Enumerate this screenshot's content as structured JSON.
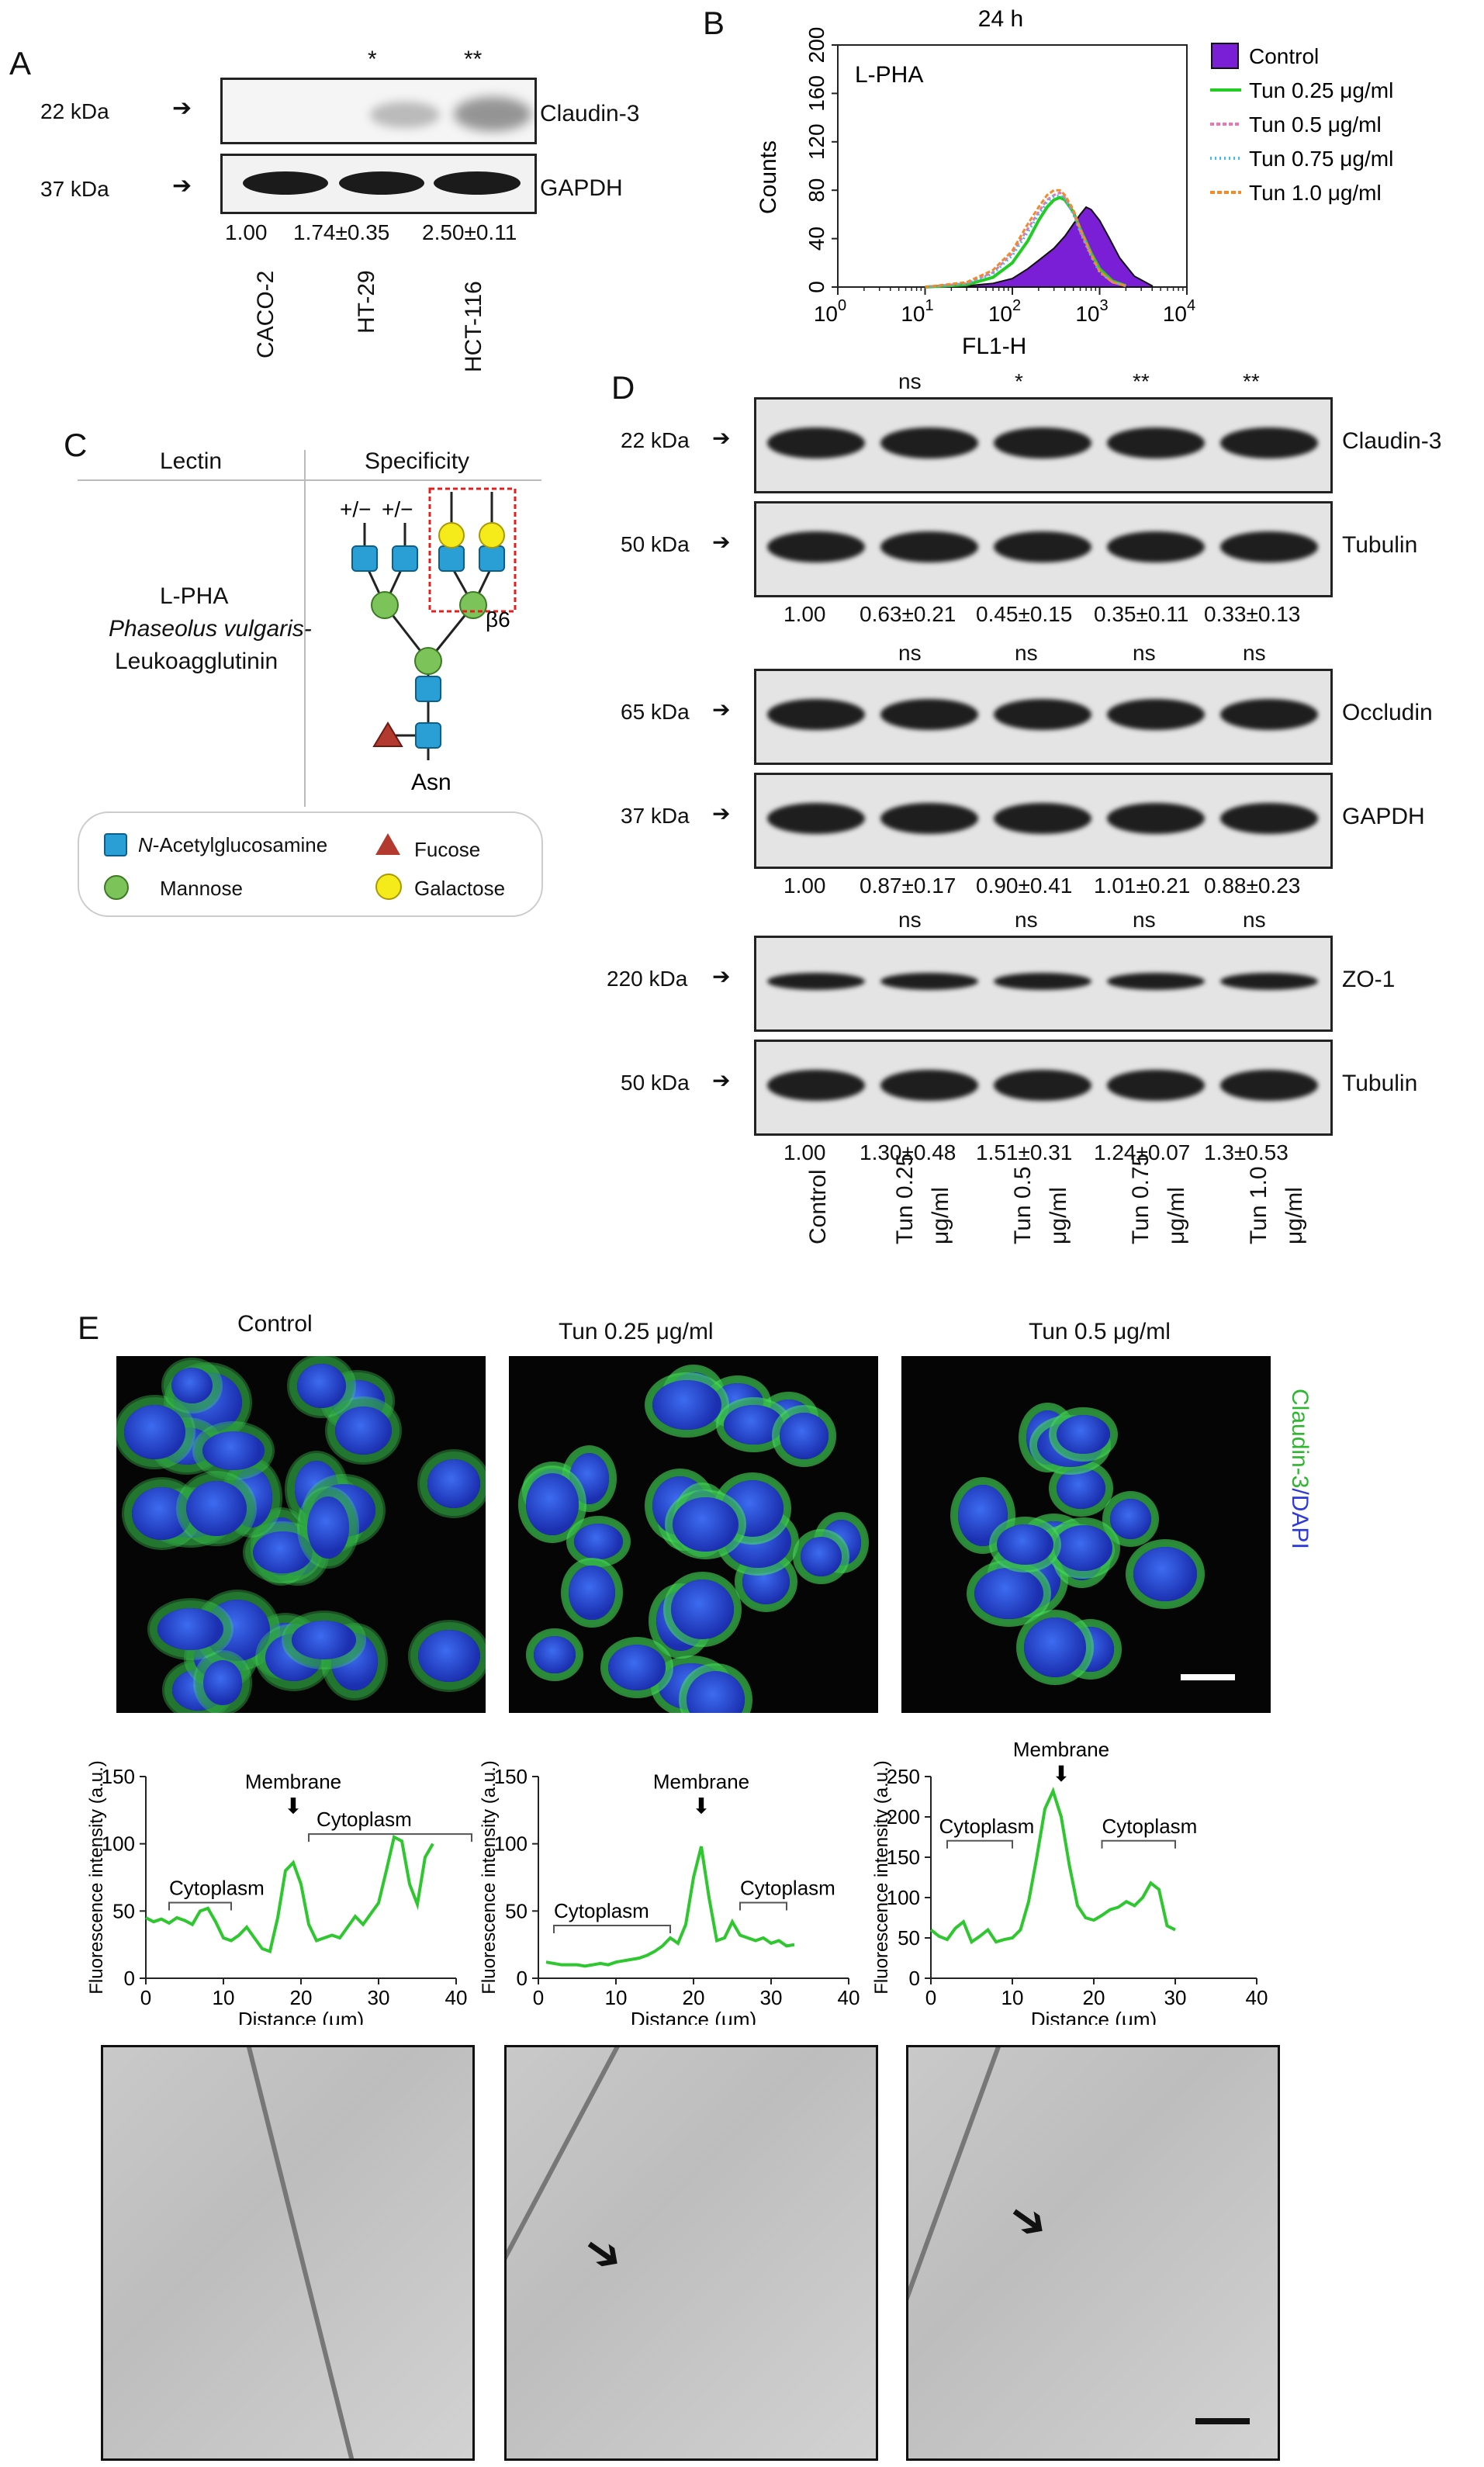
{
  "panel_labels": {
    "a": "A",
    "b": "B",
    "c": "C",
    "d": "D",
    "e": "E"
  },
  "panelA": {
    "markers": [
      "22 kDa",
      "37 kDa"
    ],
    "proteins": [
      "Claudin-3",
      "GAPDH"
    ],
    "stars": [
      "*",
      "**"
    ],
    "ratios": [
      "1.00",
      "1.74±0.35",
      "2.50±0.11"
    ],
    "lanes": [
      "CACO-2",
      "HT-29",
      "HCT-116"
    ]
  },
  "panelB": {
    "time": "24 h",
    "inner_label": "L-PHA",
    "ylabel": "Counts",
    "xlabel": "FL1-H",
    "yticks": [
      "0",
      "40",
      "80",
      "120",
      "160",
      "200"
    ],
    "xtick_base": "10",
    "xtick_exps": [
      "0",
      "1",
      "2",
      "3",
      "4"
    ],
    "legend": [
      {
        "label": "Control",
        "color": "#7b1fd6"
      },
      {
        "label": "Tun 0.25 μg/ml",
        "color": "#22cc22"
      },
      {
        "label": "Tun 0.5 μg/ml",
        "color": "#e07ab0"
      },
      {
        "label": "Tun 0.75 μg/ml",
        "color": "#44bbee"
      },
      {
        "label": "Tun 1.0 μg/ml",
        "color": "#f08a2a"
      }
    ]
  },
  "panelC": {
    "col_lectin": "Lectin",
    "col_specificity": "Specificity",
    "lectin_name": "L-PHA",
    "lectin_species": "Phaseolus vulgaris-",
    "lectin_type": "Leukoagglutinin",
    "pm1": "+/−",
    "pm2": "+/−",
    "beta": "β6",
    "asn": "Asn",
    "legend": {
      "glcnac_prefix": "N",
      "glcnac": "-Acetylglucosamine",
      "fucose": "Fucose",
      "mannose": "Mannose",
      "galactose": "Galactose"
    }
  },
  "panelD": {
    "lanes": [
      "Control",
      "Tun 0.25 μg/ml",
      "Tun 0.5 μg/ml",
      "Tun 0.75 μg/ml",
      "Tun 1.0 μg/ml"
    ],
    "blots": [
      {
        "sig": [
          "ns",
          "*",
          "**",
          "**"
        ],
        "markers": [
          "22 kDa",
          "50 kDa"
        ],
        "proteins": [
          "Claudin-3",
          "Tubulin"
        ],
        "ratios": [
          "1.00",
          "0.63±0.21",
          "0.45±0.15",
          "0.35±0.11",
          "0.33±0.13"
        ]
      },
      {
        "sig": [
          "ns",
          "ns",
          "ns",
          "ns"
        ],
        "markers": [
          "65 kDa",
          "37 kDa"
        ],
        "proteins": [
          "Occludin",
          "GAPDH"
        ],
        "ratios": [
          "1.00",
          "0.87±0.17",
          "0.90±0.41",
          "1.01±0.21",
          "0.88±0.23"
        ]
      },
      {
        "sig": [
          "ns",
          "ns",
          "ns",
          "ns"
        ],
        "markers": [
          "220 kDa",
          "50 kDa"
        ],
        "proteins": [
          "ZO-1",
          "Tubulin"
        ],
        "ratios": [
          "1.00",
          "1.30±0.48",
          "1.51±0.31",
          "1.24±0.07",
          "1.3±0.53"
        ]
      }
    ]
  },
  "panelE": {
    "titles": [
      "Control",
      "Tun 0.25 μg/ml",
      "Tun 0.5 μg/ml"
    ],
    "stain_green": "Claudin-3",
    "stain_blue": "/DAPI",
    "ylabel": "Fluorescence intensity (a.u.)",
    "xlabel": "Distance (μm)",
    "profile_labels": {
      "membrane": "Membrane",
      "cytoplasm": "Cytoplasm"
    }
  },
  "chart_data": [
    {
      "type": "line",
      "title": "24 h",
      "xlabel": "FL1-H",
      "ylabel": "Counts",
      "x_scale": "log",
      "xlim": [
        1,
        10000
      ],
      "ylim": [
        0,
        200
      ],
      "series": [
        {
          "name": "Control",
          "x": [
            10,
            30,
            60,
            100,
            150,
            200,
            300,
            400,
            500,
            600,
            700,
            800,
            1000,
            1300,
            1700,
            2500,
            4000
          ],
          "y": [
            0,
            1,
            3,
            7,
            15,
            22,
            32,
            42,
            52,
            60,
            66,
            64,
            55,
            40,
            24,
            9,
            1
          ]
        },
        {
          "name": "Tun 0.25 μg/ml",
          "x": [
            10,
            30,
            60,
            100,
            150,
            200,
            250,
            300,
            350,
            400,
            500,
            600,
            800,
            1000,
            1400,
            2000
          ],
          "y": [
            0,
            2,
            8,
            20,
            38,
            55,
            66,
            72,
            74,
            72,
            62,
            48,
            28,
            15,
            5,
            1
          ]
        },
        {
          "name": "Tun 0.5 μg/ml",
          "x": [
            10,
            30,
            60,
            100,
            150,
            200,
            250,
            300,
            350,
            400,
            500,
            600,
            800,
            1000,
            1400,
            2000
          ],
          "y": [
            0,
            3,
            12,
            28,
            48,
            62,
            72,
            76,
            78,
            74,
            62,
            46,
            26,
            13,
            4,
            1
          ]
        },
        {
          "name": "Tun 0.75 μg/ml",
          "x": [
            10,
            30,
            60,
            100,
            150,
            200,
            250,
            300,
            350,
            400,
            500,
            600,
            800,
            1000,
            1400,
            2000
          ],
          "y": [
            0,
            3,
            11,
            26,
            45,
            60,
            70,
            75,
            76,
            73,
            60,
            45,
            25,
            12,
            4,
            1
          ]
        },
        {
          "name": "Tun 1.0 μg/ml",
          "x": [
            10,
            30,
            60,
            100,
            150,
            200,
            250,
            300,
            350,
            400,
            500,
            600,
            800,
            1000,
            1400,
            2000
          ],
          "y": [
            0,
            4,
            14,
            30,
            52,
            66,
            76,
            80,
            80,
            76,
            64,
            48,
            27,
            13,
            4,
            1
          ]
        }
      ]
    },
    {
      "type": "line",
      "title": "Control",
      "xlabel": "Distance (μm)",
      "ylabel": "Fluorescence intensity (a.u.)",
      "xlim": [
        0,
        40
      ],
      "ylim": [
        0,
        150
      ],
      "series": [
        {
          "x": [
            0,
            1,
            2,
            3,
            4,
            5,
            6,
            7,
            8,
            9,
            10,
            11,
            12,
            13,
            14,
            15,
            16,
            17,
            18,
            19,
            20,
            21,
            22,
            23,
            24,
            25,
            26,
            27,
            28,
            29,
            30,
            31,
            32,
            33,
            34,
            35,
            36,
            37
          ],
          "y": [
            45,
            42,
            44,
            41,
            45,
            43,
            40,
            50,
            52,
            42,
            30,
            28,
            32,
            38,
            30,
            22,
            20,
            45,
            80,
            86,
            70,
            40,
            28,
            30,
            32,
            30,
            38,
            46,
            40,
            48,
            56,
            80,
            105,
            102,
            70,
            55,
            90,
            100
          ]
        }
      ]
    },
    {
      "type": "line",
      "title": "Tun 0.25 μg/ml",
      "xlabel": "Distance (μm)",
      "ylabel": "Fluorescence intensity (a.u.)",
      "xlim": [
        0,
        40
      ],
      "ylim": [
        0,
        150
      ],
      "series": [
        {
          "x": [
            1,
            2,
            3,
            4,
            5,
            6,
            7,
            8,
            9,
            10,
            11,
            12,
            13,
            14,
            15,
            16,
            17,
            18,
            19,
            20,
            21,
            22,
            23,
            24,
            25,
            26,
            27,
            28,
            29,
            30,
            31,
            32,
            33
          ],
          "y": [
            12,
            11,
            10,
            10,
            10,
            9,
            10,
            11,
            10,
            12,
            13,
            14,
            15,
            17,
            20,
            24,
            30,
            26,
            40,
            75,
            98,
            60,
            28,
            30,
            42,
            32,
            30,
            28,
            30,
            26,
            28,
            24,
            25
          ]
        }
      ]
    },
    {
      "type": "line",
      "title": "Tun 0.5 μg/ml",
      "xlabel": "Distance (μm)",
      "ylabel": "Fluorescence intensity (a.u.)",
      "xlim": [
        0,
        40
      ],
      "ylim": [
        0,
        250
      ],
      "series": [
        {
          "x": [
            0,
            1,
            2,
            3,
            4,
            5,
            6,
            7,
            8,
            9,
            10,
            11,
            12,
            13,
            14,
            15,
            16,
            17,
            18,
            19,
            20,
            21,
            22,
            23,
            24,
            25,
            26,
            27,
            28,
            29,
            30
          ],
          "y": [
            60,
            52,
            48,
            62,
            70,
            45,
            52,
            60,
            45,
            48,
            50,
            60,
            95,
            150,
            210,
            232,
            200,
            140,
            90,
            75,
            72,
            78,
            85,
            88,
            95,
            90,
            100,
            118,
            110,
            65,
            60
          ]
        }
      ]
    }
  ]
}
